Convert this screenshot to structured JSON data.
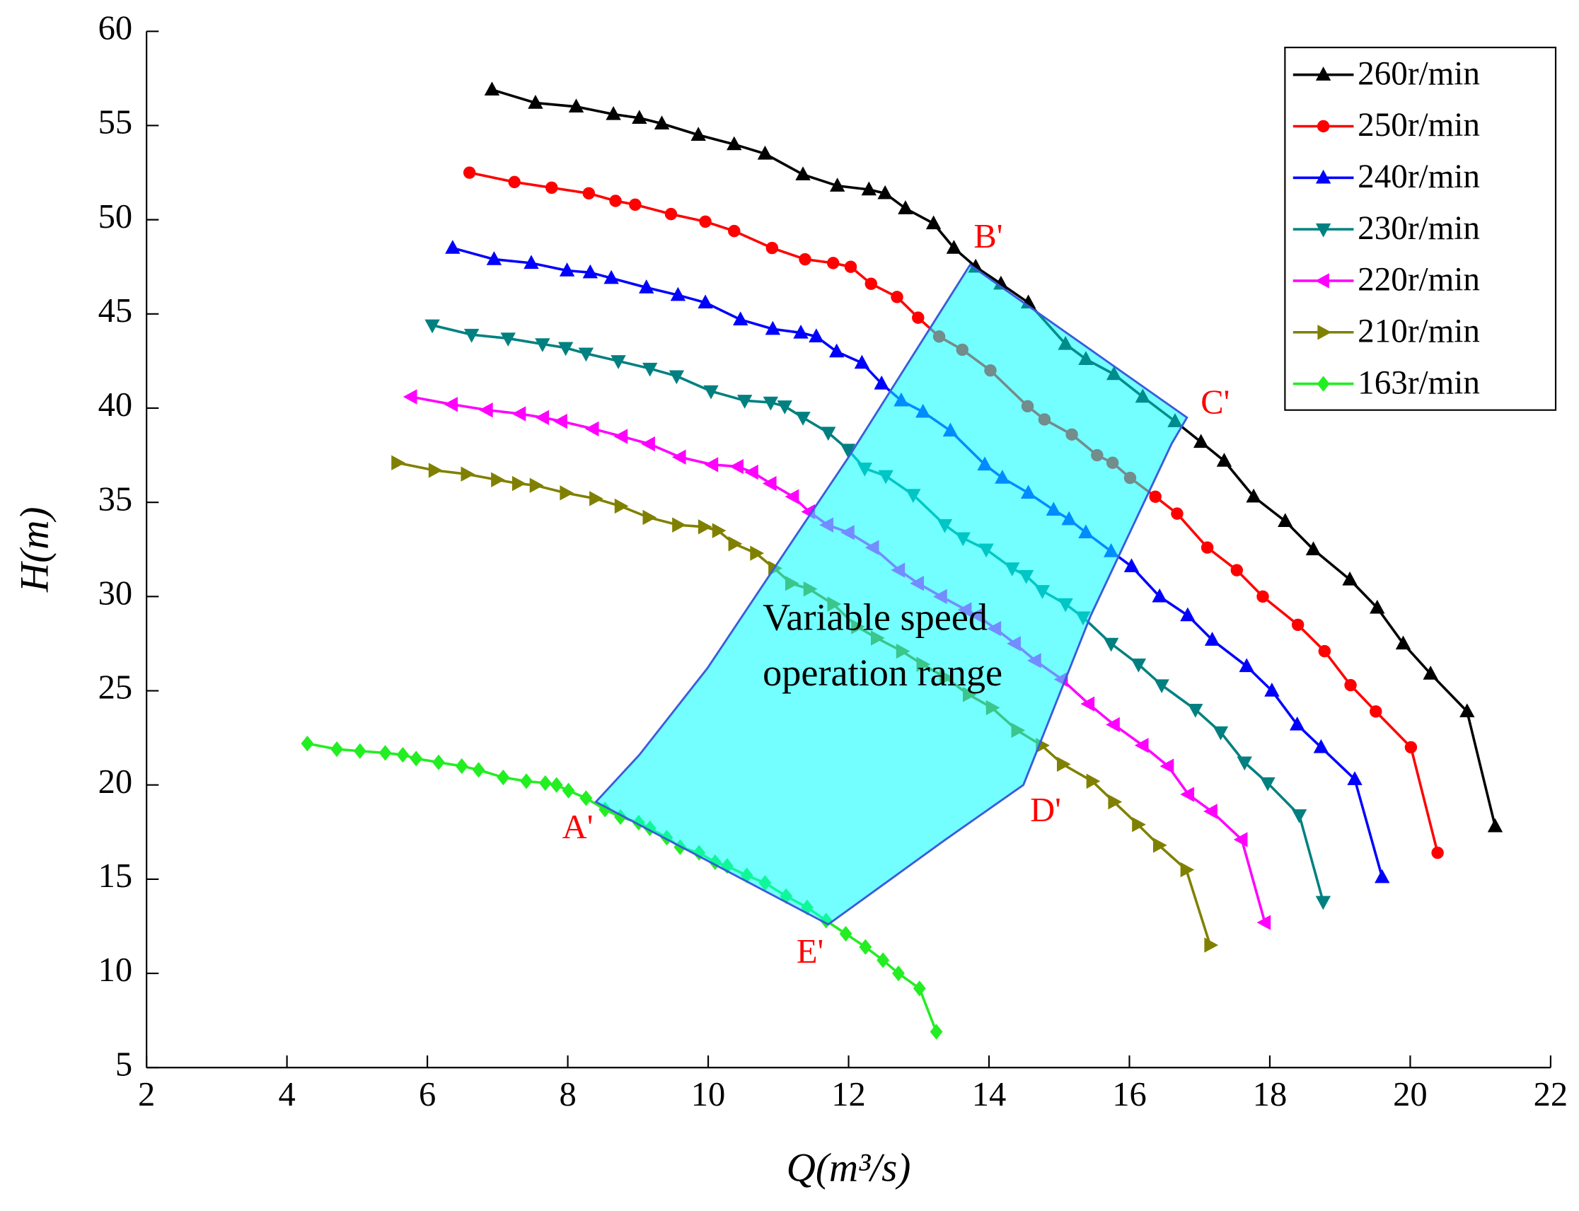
{
  "chart_data": {
    "type": "line",
    "x_label": "Q(m³/s)",
    "y_label": "H(m)",
    "xlim": [
      2,
      22
    ],
    "xticks": [
      2,
      4,
      6,
      8,
      10,
      12,
      14,
      16,
      18,
      20,
      22
    ],
    "ylim": [
      5,
      60
    ],
    "yticks": [
      5,
      10,
      15,
      20,
      25,
      30,
      35,
      40,
      45,
      50,
      55,
      60
    ],
    "legend": "top-right",
    "series": [
      {
        "name": "260r/min",
        "color": "#000000",
        "marker": "triangle-up",
        "x": [
          6.92,
          7.54,
          8.12,
          8.65,
          9.02,
          9.34,
          9.86,
          10.37,
          10.81,
          11.35,
          11.84,
          12.29,
          12.52,
          12.81,
          13.21,
          13.5,
          13.81,
          14.17,
          14.56,
          15.09,
          15.38,
          15.78,
          16.19,
          16.65,
          17.02,
          17.35,
          17.77,
          18.22,
          18.62,
          19.14,
          19.53,
          19.9,
          20.29,
          20.81,
          21.21
        ],
        "values": [
          56.9,
          56.2,
          56.0,
          55.6,
          55.4,
          55.1,
          54.5,
          54.0,
          53.5,
          52.4,
          51.8,
          51.6,
          51.4,
          50.6,
          49.8,
          48.5,
          47.5,
          46.6,
          45.6,
          43.4,
          42.6,
          41.8,
          40.6,
          39.3,
          38.2,
          37.2,
          35.3,
          34.0,
          32.5,
          30.9,
          29.4,
          27.5,
          25.9,
          23.9,
          17.8
        ]
      },
      {
        "name": "250r/min",
        "color": "#ff0000",
        "marker": "circle",
        "x": [
          6.6,
          7.24,
          7.77,
          8.3,
          8.68,
          8.96,
          9.47,
          9.96,
          10.37,
          10.91,
          11.38,
          11.78,
          12.03,
          12.32,
          12.69,
          12.99,
          13.29,
          13.62,
          14.02,
          14.55,
          14.79,
          15.18,
          15.54,
          15.76,
          16.01,
          16.37,
          16.68,
          17.11,
          17.53,
          17.9,
          18.4,
          18.78,
          19.15,
          19.51,
          20.01,
          20.39
        ],
        "values": [
          52.5,
          52.0,
          51.7,
          51.4,
          51.0,
          50.8,
          50.3,
          49.9,
          49.4,
          48.5,
          47.9,
          47.7,
          47.5,
          46.6,
          45.9,
          44.8,
          43.8,
          43.1,
          42.0,
          40.1,
          39.4,
          38.6,
          37.5,
          37.1,
          36.3,
          35.3,
          34.4,
          32.6,
          31.4,
          30.0,
          28.5,
          27.1,
          25.3,
          23.9,
          22.0,
          16.4
        ]
      },
      {
        "name": "240r/min",
        "color": "#0000ff",
        "marker": "triangle-up",
        "x": [
          6.36,
          6.95,
          7.48,
          7.99,
          8.32,
          8.62,
          9.12,
          9.57,
          9.96,
          10.46,
          10.92,
          11.32,
          11.54,
          11.83,
          12.19,
          12.47,
          12.75,
          13.06,
          13.45,
          13.94,
          14.19,
          14.56,
          14.92,
          15.14,
          15.38,
          15.74,
          16.03,
          16.43,
          16.83,
          17.18,
          17.67,
          18.03,
          18.39,
          18.73,
          19.21,
          19.6
        ],
        "values": [
          48.5,
          47.9,
          47.7,
          47.3,
          47.2,
          46.9,
          46.4,
          46.0,
          45.6,
          44.7,
          44.2,
          44.0,
          43.8,
          43.0,
          42.4,
          41.3,
          40.4,
          39.8,
          38.8,
          37.0,
          36.3,
          35.5,
          34.6,
          34.1,
          33.4,
          32.4,
          31.6,
          30.0,
          29.0,
          27.7,
          26.3,
          25.0,
          23.2,
          22.0,
          20.3,
          15.1
        ]
      },
      {
        "name": "230r/min",
        "color": "#008080",
        "marker": "triangle-down",
        "x": [
          6.07,
          6.63,
          7.15,
          7.64,
          7.97,
          8.26,
          8.72,
          9.17,
          9.55,
          10.04,
          10.52,
          10.89,
          11.09,
          11.35,
          11.71,
          11.99,
          12.23,
          12.53,
          12.92,
          13.37,
          13.63,
          13.96,
          14.33,
          14.53,
          14.76,
          15.09,
          15.34,
          15.74,
          16.13,
          16.46,
          16.94,
          17.3,
          17.64,
          17.97,
          18.42,
          18.76
        ],
        "values": [
          44.4,
          43.9,
          43.7,
          43.4,
          43.2,
          42.9,
          42.5,
          42.1,
          41.7,
          40.9,
          40.4,
          40.3,
          40.1,
          39.5,
          38.7,
          37.8,
          36.8,
          36.4,
          35.4,
          33.8,
          33.1,
          32.5,
          31.5,
          31.1,
          30.3,
          29.6,
          28.9,
          27.5,
          26.4,
          25.3,
          24.0,
          22.8,
          21.2,
          20.1,
          18.4,
          13.8
        ]
      },
      {
        "name": "220r/min",
        "color": "#ff00ff",
        "marker": "triangle-left",
        "x": [
          5.77,
          6.35,
          6.85,
          7.32,
          7.65,
          7.91,
          8.36,
          8.77,
          9.16,
          9.6,
          10.06,
          10.42,
          10.63,
          10.89,
          11.21,
          11.44,
          11.7,
          12.0,
          12.35,
          12.72,
          12.99,
          13.32,
          13.67,
          13.83,
          14.09,
          14.37,
          14.66,
          15.04,
          15.42,
          15.78,
          16.19,
          16.55,
          16.84,
          17.17,
          17.6,
          17.93
        ],
        "values": [
          40.6,
          40.2,
          39.9,
          39.7,
          39.5,
          39.3,
          38.9,
          38.5,
          38.1,
          37.4,
          37.0,
          36.9,
          36.6,
          36.0,
          35.3,
          34.5,
          33.8,
          33.4,
          32.6,
          31.4,
          30.7,
          30.0,
          29.3,
          29.0,
          28.3,
          27.5,
          26.6,
          25.6,
          24.3,
          23.2,
          22.1,
          21.0,
          19.5,
          18.6,
          17.1,
          12.7
        ]
      },
      {
        "name": "210r/min",
        "color": "#808000",
        "marker": "triangle-right",
        "x": [
          5.57,
          6.1,
          6.56,
          6.99,
          7.29,
          7.54,
          7.97,
          8.39,
          8.75,
          9.15,
          9.57,
          9.94,
          10.14,
          10.37,
          10.68,
          10.94,
          11.18,
          11.44,
          11.78,
          12.12,
          12.4,
          12.76,
          13.05,
          13.38,
          13.71,
          14.04,
          14.4,
          14.75,
          15.05,
          15.47,
          15.78,
          16.12,
          16.42,
          16.81,
          17.15
        ],
        "values": [
          37.1,
          36.7,
          36.5,
          36.2,
          36.0,
          35.9,
          35.5,
          35.2,
          34.8,
          34.2,
          33.8,
          33.7,
          33.5,
          32.8,
          32.3,
          31.5,
          30.7,
          30.4,
          29.6,
          28.4,
          27.8,
          27.1,
          26.4,
          25.7,
          24.8,
          24.1,
          22.9,
          22.1,
          21.1,
          20.2,
          19.1,
          17.9,
          16.8,
          15.5,
          11.5
        ]
      },
      {
        "name": "163r/min",
        "color": "#22ee22",
        "marker": "diamond",
        "x": [
          4.29,
          4.71,
          5.04,
          5.4,
          5.65,
          5.84,
          6.16,
          6.49,
          6.73,
          7.08,
          7.41,
          7.68,
          7.84,
          8.01,
          8.26,
          8.53,
          8.75,
          9.01,
          9.17,
          9.41,
          9.6,
          9.87,
          10.1,
          10.27,
          10.55,
          10.81,
          11.11,
          11.41,
          11.68,
          11.96,
          12.24,
          12.49,
          12.71,
          13.01,
          13.25
        ],
        "values": [
          22.2,
          21.9,
          21.8,
          21.7,
          21.6,
          21.4,
          21.2,
          21.0,
          20.8,
          20.4,
          20.2,
          20.1,
          20.0,
          19.7,
          19.3,
          18.7,
          18.3,
          18.0,
          17.7,
          17.2,
          16.7,
          16.4,
          15.9,
          15.7,
          15.2,
          14.8,
          14.1,
          13.5,
          12.8,
          12.1,
          11.4,
          10.7,
          10.0,
          9.2,
          6.9
        ]
      }
    ],
    "region": {
      "color": "#00ffff",
      "edge_color": "#3b5bdb",
      "x": [
        8.4,
        9.02,
        9.99,
        11.28,
        12.0,
        13.73,
        16.82,
        16.6,
        15.45,
        14.49,
        13.38,
        11.71
      ],
      "y": [
        19.1,
        21.6,
        26.2,
        33.4,
        37.4,
        47.6,
        39.5,
        38.1,
        29.0,
        20.0,
        17.1,
        12.6
      ],
      "label": [
        "Variable speed",
        "operation range"
      ]
    },
    "annotations": [
      {
        "text": "A'",
        "x": 8.4,
        "y": 19.1
      },
      {
        "text": "B'",
        "x": 13.73,
        "y": 47.6
      },
      {
        "text": "C'",
        "x": 16.82,
        "y": 39.5
      },
      {
        "text": "D'",
        "x": 14.49,
        "y": 20.0
      },
      {
        "text": "E'",
        "x": 11.71,
        "y": 12.6
      }
    ]
  }
}
